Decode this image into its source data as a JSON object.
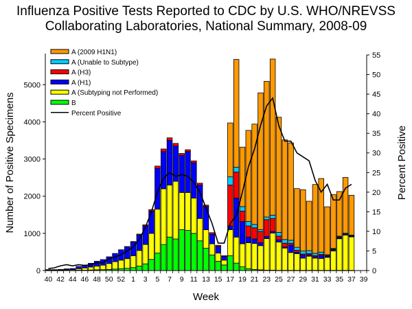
{
  "chart_data": {
    "type": "bar",
    "stacked": true,
    "title_lines": [
      "Influenza Positive Tests Reported to CDC by U.S. WHO/NREVSS",
      "Collaborating Laboratories, National Summary, 2008-09"
    ],
    "xlabel": "Week",
    "ylabel": "Number of Positive Specimens",
    "y2label": "Percent Positive",
    "ylim": [
      0,
      5800
    ],
    "y2lim": [
      0,
      55
    ],
    "yticks": [
      0,
      1000,
      2000,
      3000,
      4000,
      5000
    ],
    "y2ticks": [
      0,
      5,
      10,
      15,
      20,
      25,
      30,
      35,
      40,
      45,
      50,
      55
    ],
    "categories": [
      "40",
      "41",
      "42",
      "43",
      "44",
      "45",
      "46",
      "47",
      "48",
      "49",
      "50",
      "51",
      "52",
      "53",
      "1",
      "2",
      "3",
      "4",
      "5",
      "6",
      "7",
      "8",
      "9",
      "10",
      "11",
      "12",
      "13",
      "14",
      "15",
      "16",
      "17",
      "18",
      "19",
      "20",
      "21",
      "22",
      "23",
      "24",
      "25",
      "26",
      "27",
      "28",
      "29",
      "30",
      "31",
      "32",
      "33",
      "34",
      "35",
      "36",
      "37",
      "38",
      "39"
    ],
    "xtick_labels": [
      "40",
      "42",
      "44",
      "46",
      "48",
      "50",
      "52",
      "1",
      "3",
      "5",
      "7",
      "9",
      "11",
      "13",
      "15",
      "17",
      "19",
      "21",
      "23",
      "25",
      "27",
      "29",
      "31",
      "33",
      "35",
      "37",
      "39"
    ],
    "legend": {
      "position": "top-left",
      "entries": [
        "A (2009 H1N1)",
        "A (Unable to Subtype)",
        "A (H3)",
        "A (H1)",
        "A (Subtyping not Performed)",
        "B",
        "Percent Positive"
      ]
    },
    "series": [
      {
        "name": "B",
        "color": "#00ff00",
        "values": [
          5,
          5,
          5,
          10,
          5,
          10,
          10,
          15,
          20,
          25,
          30,
          40,
          50,
          60,
          80,
          120,
          180,
          300,
          470,
          700,
          900,
          850,
          1100,
          1080,
          1000,
          800,
          600,
          420,
          250,
          150,
          400,
          200,
          100,
          50,
          30,
          20,
          10,
          10,
          5,
          5,
          5,
          5,
          5,
          5,
          5,
          5,
          5,
          5,
          5,
          5,
          5,
          null,
          null
        ]
      },
      {
        "name": "A (Subtyping not Performed)",
        "color": "#ffff00",
        "values": [
          10,
          10,
          10,
          15,
          20,
          40,
          60,
          80,
          100,
          120,
          160,
          200,
          230,
          260,
          320,
          420,
          520,
          700,
          1180,
          1500,
          1400,
          1550,
          1000,
          1020,
          950,
          600,
          500,
          300,
          220,
          130,
          700,
          700,
          620,
          700,
          700,
          650,
          850,
          1000,
          760,
          600,
          480,
          450,
          330,
          380,
          330,
          320,
          350,
          520,
          850,
          950,
          900,
          null,
          null
        ]
      },
      {
        "name": "A (H1)",
        "color": "#0000ff",
        "values": [
          10,
          10,
          15,
          20,
          30,
          60,
          80,
          100,
          130,
          150,
          180,
          220,
          280,
          320,
          370,
          420,
          500,
          600,
          1100,
          1000,
          1200,
          950,
          1000,
          1100,
          950,
          900,
          620,
          260,
          180,
          100,
          100,
          1050,
          600,
          150,
          120,
          80,
          60,
          40,
          60,
          30,
          200,
          40,
          80,
          40,
          40,
          80,
          30,
          30,
          30,
          20,
          20,
          null,
          null
        ]
      },
      {
        "name": "A (H3)",
        "color": "#ff0000",
        "values": [
          0,
          0,
          0,
          0,
          0,
          0,
          0,
          0,
          0,
          0,
          0,
          0,
          0,
          5,
          10,
          20,
          30,
          40,
          60,
          70,
          70,
          70,
          50,
          50,
          50,
          50,
          40,
          40,
          30,
          20,
          1100,
          700,
          280,
          300,
          300,
          300,
          450,
          350,
          100,
          100,
          50,
          50,
          30,
          30,
          30,
          30,
          20,
          20,
          20,
          10,
          10,
          null,
          null
        ]
      },
      {
        "name": "A (Unable to Subtype)",
        "color": "#00ccff",
        "values": [
          0,
          0,
          0,
          0,
          0,
          0,
          0,
          0,
          0,
          0,
          0,
          0,
          0,
          0,
          0,
          0,
          0,
          0,
          0,
          0,
          0,
          0,
          0,
          0,
          0,
          0,
          0,
          0,
          0,
          0,
          220,
          130,
          120,
          120,
          90,
          50,
          70,
          90,
          100,
          100,
          80,
          80,
          80,
          80,
          60,
          60,
          20,
          20,
          20,
          20,
          20,
          null,
          null
        ]
      },
      {
        "name": "A (2009 H1N1)",
        "color": "#ff9900",
        "values": [
          0,
          0,
          0,
          0,
          0,
          0,
          0,
          0,
          0,
          0,
          0,
          0,
          0,
          0,
          0,
          0,
          0,
          0,
          0,
          0,
          0,
          0,
          0,
          0,
          0,
          0,
          0,
          0,
          0,
          0,
          1450,
          2900,
          1600,
          2450,
          2700,
          3680,
          3650,
          4200,
          3100,
          2680,
          2620,
          1580,
          1650,
          1330,
          1850,
          1980,
          1290,
          1450,
          1200,
          1500,
          1070,
          null,
          null
        ]
      }
    ],
    "line": {
      "name": "Percent Positive",
      "axis": "y2",
      "color": "#000000",
      "values": [
        0.5,
        0.7,
        1.2,
        1.5,
        1.2,
        1.5,
        1.3,
        1.5,
        2.0,
        2.0,
        3.0,
        3.5,
        4.0,
        5.0,
        6.0,
        8.0,
        11.0,
        15.0,
        20.0,
        23.5,
        25.0,
        24.0,
        24.5,
        24.0,
        22.5,
        20.0,
        16.0,
        12.0,
        7.0,
        7.0,
        12.0,
        14.0,
        20.0,
        26.5,
        31.0,
        37.0,
        42.0,
        44.0,
        37.0,
        33.0,
        33.0,
        30.0,
        29.0,
        28.0,
        23.0,
        20.0,
        22.0,
        18.0,
        18.0,
        21.0,
        22.0,
        null,
        null
      ]
    }
  }
}
